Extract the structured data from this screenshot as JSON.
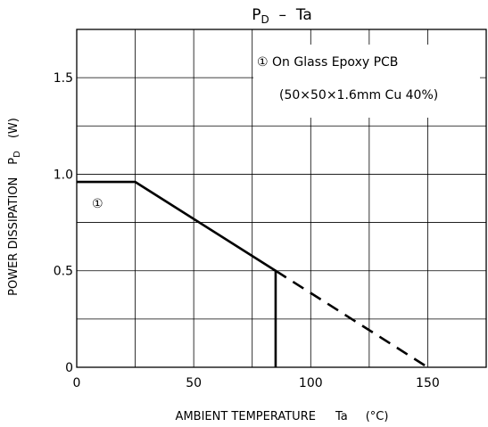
{
  "chart_data": {
    "type": "line",
    "title": {
      "main": "P",
      "sub": "D",
      "rest": "  –  Ta"
    },
    "xlabel": {
      "text": "AMBIENT TEMPERATURE",
      "symbol": "Ta",
      "unit": "(°C)"
    },
    "ylabel": {
      "text": "POWER DISSIPATION",
      "symbol": "P",
      "sub": "D",
      "unit": "(W)"
    },
    "xlim": [
      0,
      175
    ],
    "ylim": [
      0,
      1.75
    ],
    "x_ticks": [
      {
        "value": 0,
        "label": "0"
      },
      {
        "value": 50,
        "label": "50"
      },
      {
        "value": 100,
        "label": "100"
      },
      {
        "value": 150,
        "label": "150"
      }
    ],
    "y_ticks": [
      {
        "value": 0,
        "label": "0"
      },
      {
        "value": 0.5,
        "label": "0.5"
      },
      {
        "value": 1.0,
        "label": "1.0"
      },
      {
        "value": 1.5,
        "label": "1.5"
      }
    ],
    "x_grid": [
      25,
      50,
      75,
      100,
      125,
      150
    ],
    "y_grid": [
      0.25,
      0.5,
      0.75,
      1.0,
      1.25,
      1.5
    ],
    "grid": true,
    "series": [
      {
        "marker": "①",
        "style": "solid",
        "x": [
          0,
          25,
          85,
          85
        ],
        "y": [
          0.96,
          0.96,
          0.5,
          0
        ]
      },
      {
        "marker": "",
        "style": "dashed",
        "x": [
          85,
          150
        ],
        "y": [
          0.5,
          0
        ]
      }
    ],
    "legend": {
      "position": "top-right",
      "line1": "① On Glass Epoxy PCB",
      "line2": "(50×50×1.6mm Cu 40%)"
    },
    "series_label": {
      "text": "①"
    }
  }
}
